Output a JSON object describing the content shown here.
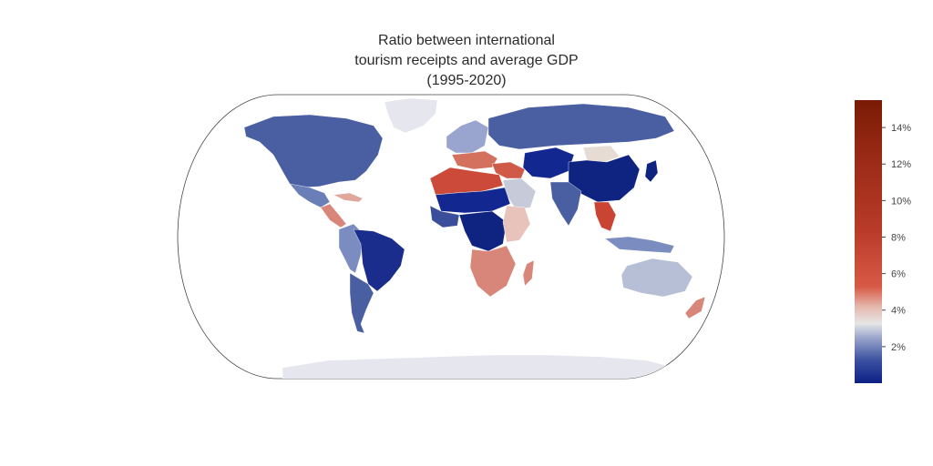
{
  "title": {
    "line1": "Ratio between international",
    "line2": "tourism receipts and average GDP",
    "line3": "(1995-2020)"
  },
  "map": {
    "projection": "natural-earth",
    "ocean_color": "#ffffff",
    "frame_color": "#444444",
    "no_data_color": "#e6e6ee",
    "regions": [
      {
        "name": "North America",
        "value": 1.0,
        "color": "#4a5ea2"
      },
      {
        "name": "Greenland",
        "value": null,
        "color": "#e6e6ee"
      },
      {
        "name": "Mexico",
        "value": 1.4,
        "color": "#6a7fb8"
      },
      {
        "name": "Central America",
        "value": 5.0,
        "color": "#d9867a"
      },
      {
        "name": "Caribbean",
        "value": 4.5,
        "color": "#e0a89c"
      },
      {
        "name": "Brazil",
        "value": 0.3,
        "color": "#1a2d8c"
      },
      {
        "name": "Andean South America",
        "value": 1.5,
        "color": "#7a8cc0"
      },
      {
        "name": "Southern Cone",
        "value": 1.0,
        "color": "#4a5ea2"
      },
      {
        "name": "Western Europe",
        "value": 2.0,
        "color": "#9aa5cf"
      },
      {
        "name": "Southern Europe",
        "value": 5.5,
        "color": "#d4705e"
      },
      {
        "name": "Russia",
        "value": 0.8,
        "color": "#4a5ea2"
      },
      {
        "name": "North Africa",
        "value": 7.0,
        "color": "#cc4a3a"
      },
      {
        "name": "Sahel",
        "value": 0.4,
        "color": "#132790"
      },
      {
        "name": "West Africa",
        "value": 0.8,
        "color": "#3a4e9a"
      },
      {
        "name": "Central Africa",
        "value": 0.3,
        "color": "#0f2380"
      },
      {
        "name": "East Africa",
        "value": 4.2,
        "color": "#e7c3bb"
      },
      {
        "name": "Southern Africa",
        "value": 4.8,
        "color": "#d9867a"
      },
      {
        "name": "Madagascar",
        "value": 5.0,
        "color": "#d9867a"
      },
      {
        "name": "Arabian Peninsula",
        "value": 2.2,
        "color": "#c7cad8"
      },
      {
        "name": "Middle East",
        "value": 5.8,
        "color": "#cf5a48"
      },
      {
        "name": "Central Asia",
        "value": 0.3,
        "color": "#132790"
      },
      {
        "name": "India",
        "value": 0.9,
        "color": "#4a5ea2"
      },
      {
        "name": "China",
        "value": 0.3,
        "color": "#0f2380"
      },
      {
        "name": "Mongolia",
        "value": 3.4,
        "color": "#e6dcd4"
      },
      {
        "name": "Southeast Asia",
        "value": 8.0,
        "color": "#c94433"
      },
      {
        "name": "Indonesia",
        "value": 1.5,
        "color": "#7a8cc0"
      },
      {
        "name": "Japan",
        "value": 0.2,
        "color": "#0f2380"
      },
      {
        "name": "Australia",
        "value": 2.0,
        "color": "#b6bfd6"
      },
      {
        "name": "New Zealand",
        "value": 5.0,
        "color": "#d9867a"
      },
      {
        "name": "Antarctica",
        "value": null,
        "color": "#e6e6ee"
      }
    ]
  },
  "colorbar": {
    "min": 0,
    "max": 15.5,
    "ticks": [
      {
        "value": 2,
        "label": "2%"
      },
      {
        "value": 4,
        "label": "4%"
      },
      {
        "value": 6,
        "label": "6%"
      },
      {
        "value": 8,
        "label": "8%"
      },
      {
        "value": 10,
        "label": "10%"
      },
      {
        "value": 12,
        "label": "12%"
      },
      {
        "value": 14,
        "label": "14%"
      }
    ],
    "stops": [
      {
        "offset": 0.0,
        "color": "#0d1f86"
      },
      {
        "offset": 0.08,
        "color": "#3a50a0"
      },
      {
        "offset": 0.16,
        "color": "#9aa5cc"
      },
      {
        "offset": 0.21,
        "color": "#e6e6e6"
      },
      {
        "offset": 0.27,
        "color": "#e6b8ae"
      },
      {
        "offset": 0.34,
        "color": "#d65a46"
      },
      {
        "offset": 0.55,
        "color": "#b73a28"
      },
      {
        "offset": 0.8,
        "color": "#992a15"
      },
      {
        "offset": 1.0,
        "color": "#7a1a05"
      }
    ]
  }
}
